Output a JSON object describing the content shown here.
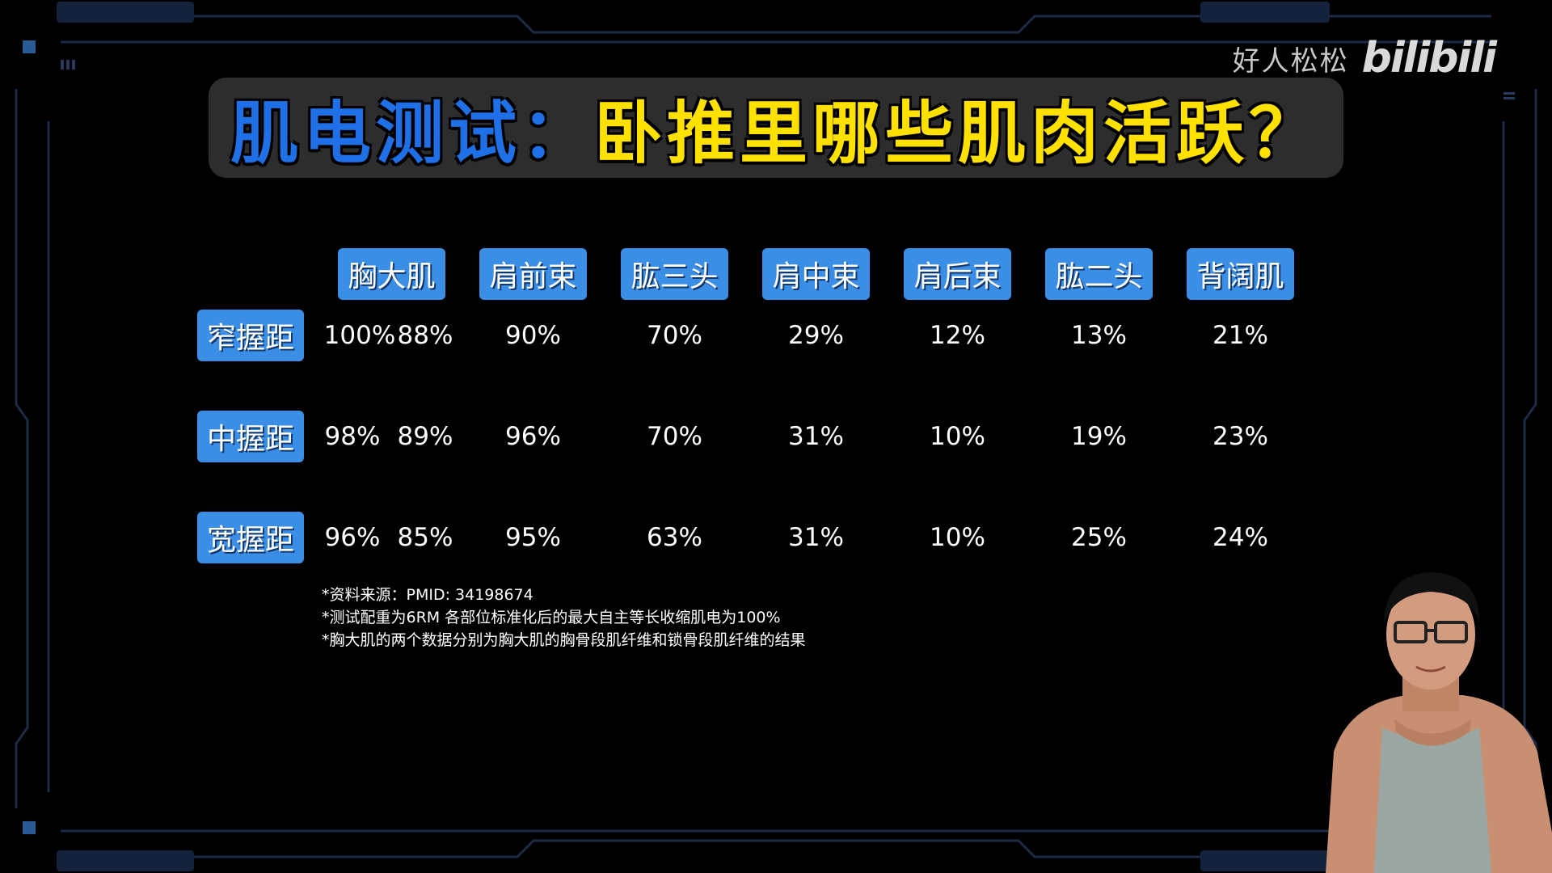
{
  "watermark": {
    "name": "好人松松",
    "logo": "bilibili"
  },
  "title": {
    "part1": "肌电测试：",
    "part2": "卧推里哪些肌肉活跃？"
  },
  "columns": [
    "胸大肌",
    "肩前束",
    "肱三头",
    "肩中束",
    "肩后束",
    "肱二头",
    "背阔肌"
  ],
  "rows": [
    {
      "label": "窄握距",
      "values": [
        "100%",
        "88%",
        "90%",
        "70%",
        "29%",
        "12%",
        "13%",
        "21%"
      ]
    },
    {
      "label": "中握距",
      "values": [
        "98%",
        "89%",
        "96%",
        "70%",
        "31%",
        "10%",
        "19%",
        "23%"
      ]
    },
    {
      "label": "宽握距",
      "values": [
        "96%",
        "85%",
        "95%",
        "63%",
        "31%",
        "10%",
        "25%",
        "24%"
      ]
    }
  ],
  "notes": [
    "*资料来源：PMID: 34198674",
    "*测试配重为6RM 各部位标准化后的最大自主等长收缩肌电为100%",
    "*胸大肌的两个数据分别为胸大肌的胸骨段肌纤维和锁骨段肌纤维的结果"
  ],
  "colors": {
    "accent": "#3a8ee6",
    "title_blue": "#1f6fe6",
    "title_yellow": "#ffe100",
    "frame": "#1c2a44"
  }
}
